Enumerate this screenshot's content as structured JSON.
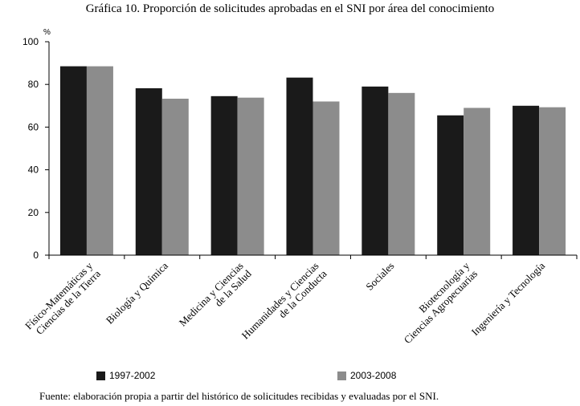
{
  "title_prefix": "Gráfica 10. Proporción de solicitudes aprobadas en el ",
  "title_sc": "SNI",
  "title_suffix": " por área del conocimiento",
  "source_prefix": "Fuente: elaboración propia a partir del histórico de solicitudes recibidas y evaluadas por el ",
  "source_sc": "SNI",
  "source_suffix": ".",
  "colors": {
    "series_1": "#1a1a1a",
    "series_2": "#8c8c8c",
    "axis": "#000000"
  },
  "chart_data": {
    "type": "bar",
    "ylabel": "%",
    "ylim": [
      0,
      100
    ],
    "yticks": [
      0,
      20,
      40,
      60,
      80,
      100
    ],
    "grid": false,
    "legend_position": "bottom",
    "categories": [
      [
        "Físico-Matemáticas y",
        "Ciencias de la Tierra"
      ],
      [
        "Biología y Química"
      ],
      [
        "Medicina y Ciencias",
        "de la Salud"
      ],
      [
        "Humanidades y Ciencias",
        "de la Conducta"
      ],
      [
        "Sociales"
      ],
      [
        "Biotecnología y",
        "Ciencias Agropecuarias"
      ],
      [
        "Ingeniería y Tecnología"
      ]
    ],
    "series": [
      {
        "name": "1997-2002",
        "values": [
          88.5,
          78.2,
          74.5,
          83.2,
          79.0,
          65.5,
          70.0
        ]
      },
      {
        "name": "2003-2008",
        "values": [
          88.5,
          73.3,
          73.8,
          72.0,
          76.0,
          69.0,
          69.3
        ]
      }
    ]
  }
}
